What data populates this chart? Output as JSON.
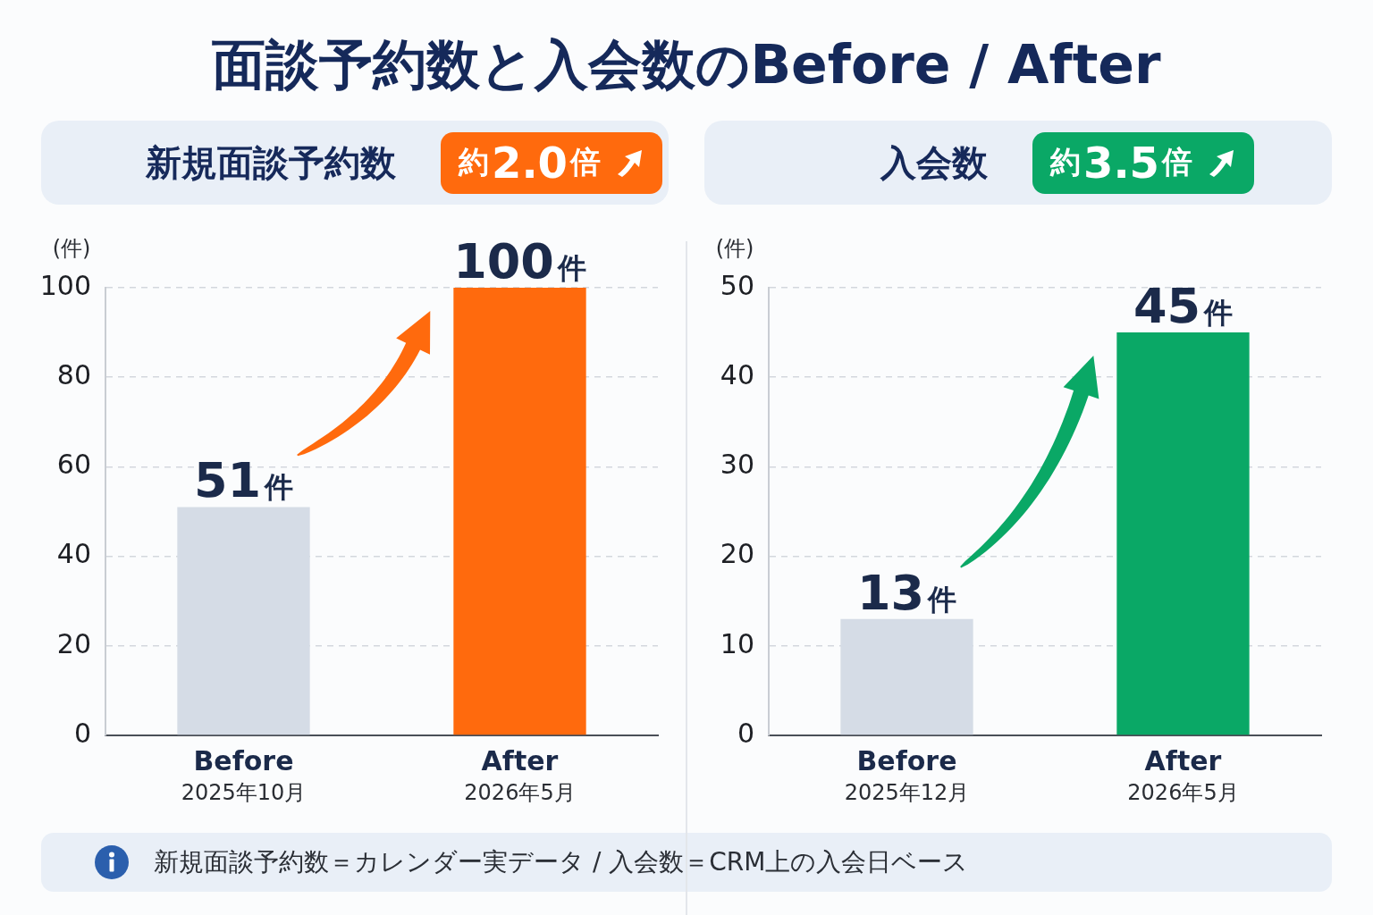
{
  "chart_data": [
    {
      "type": "other",
      "title": "面談予約数と入会数のBefore / After"
    },
    {
      "type": "bar",
      "title": "新規面談予約数",
      "annotations": [
        "約2.0倍"
      ],
      "ylabel": "(件)",
      "categories": [
        "Before\n2025年10月",
        "After\n2026年5月"
      ],
      "values": [
        51,
        100
      ],
      "colors": [
        "#d5dce6",
        "#ff6a0d"
      ],
      "value_labels": [
        "51件",
        "100件"
      ],
      "ylim": [
        0,
        100
      ],
      "yticks": [
        0,
        20,
        40,
        60,
        80,
        100
      ],
      "grid": "y"
    },
    {
      "type": "bar",
      "title": "入会数",
      "annotations": [
        "約3.5倍"
      ],
      "ylabel": "(件)",
      "categories": [
        "Before\n2025年12月",
        "After\n2026年5月"
      ],
      "values": [
        13,
        45
      ],
      "colors": [
        "#d5dce6",
        "#0aa866"
      ],
      "value_labels": [
        "13件",
        "45件"
      ],
      "ylim": [
        0,
        50
      ],
      "yticks": [
        0,
        10,
        20,
        30,
        40,
        50
      ],
      "grid": "y"
    },
    {
      "type": "other",
      "annotations": [
        "新規面談予約数＝カレンダー実データ / 入会数＝CRM上の入会日ベース"
      ]
    }
  ]
}
